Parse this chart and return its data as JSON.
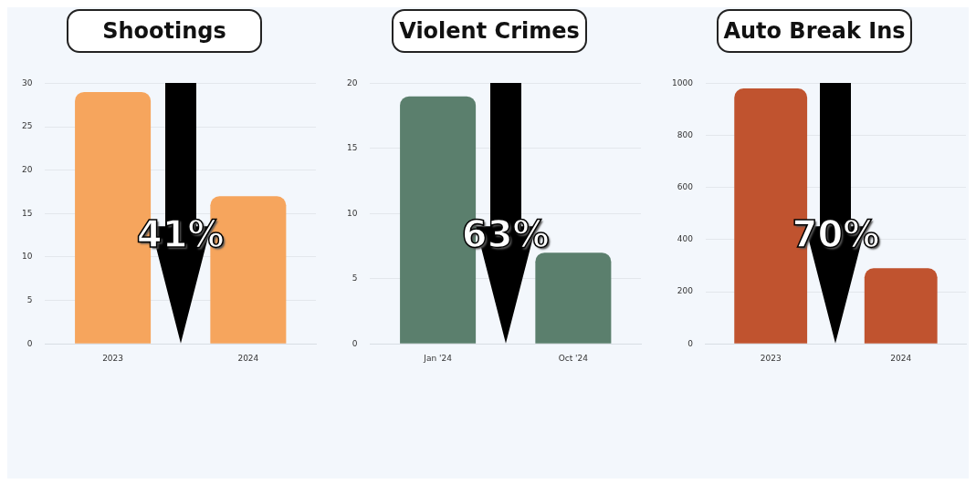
{
  "chart_data": [
    {
      "type": "bar",
      "title": "Shootings",
      "categories": [
        "2023",
        "2024"
      ],
      "values": [
        29,
        17
      ],
      "color": "#f6a55d",
      "ylim": [
        0,
        30
      ],
      "yticks": [
        0,
        5,
        10,
        15,
        20,
        25,
        30
      ],
      "grid": "y",
      "annotations": [
        "41%"
      ]
    },
    {
      "type": "bar",
      "title": "Violent Crimes",
      "categories": [
        "Jan '24",
        "Oct '24"
      ],
      "values": [
        19,
        7
      ],
      "color": "#5b7f6d",
      "ylim": [
        0,
        20
      ],
      "yticks": [
        0,
        5,
        10,
        15,
        20
      ],
      "grid": "y",
      "annotations": [
        "63%"
      ]
    },
    {
      "type": "bar",
      "title": "Auto Break Ins",
      "categories": [
        "2023",
        "2024"
      ],
      "values": [
        980,
        290
      ],
      "color": "#c0532f",
      "ylim": [
        0,
        1000
      ],
      "yticks": [
        0,
        200,
        400,
        600,
        800,
        1000
      ],
      "grid": "y",
      "annotations": [
        "70%"
      ]
    }
  ]
}
